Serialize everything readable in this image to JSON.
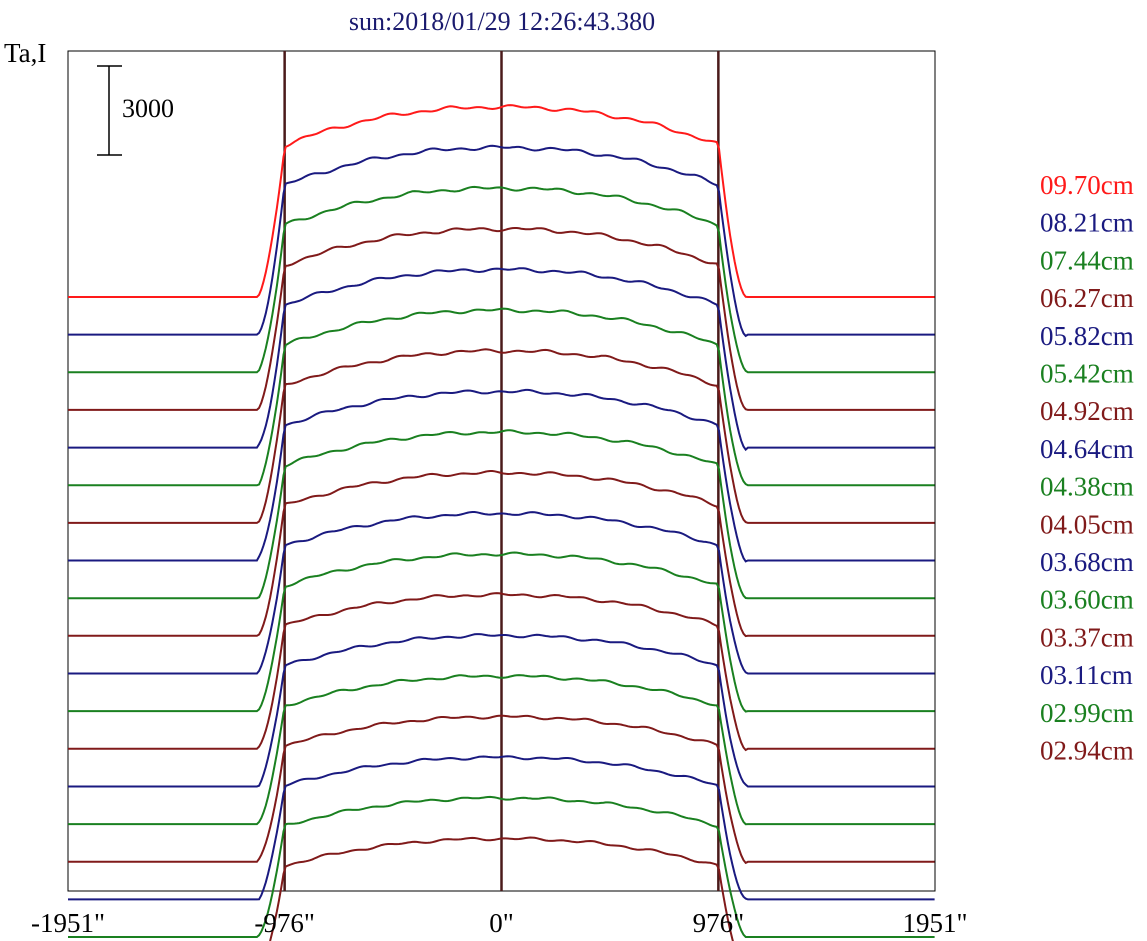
{
  "chart_data": {
    "type": "line",
    "title": "sun:2018/01/29 12:26:43.380",
    "ylabel": "Ta,I",
    "scale_bar_label": "3000",
    "scale_bar_value": 3000,
    "x_range": [
      -1951,
      1951
    ],
    "x_ticks": [
      {
        "value": -1951,
        "label": "-1951\""
      },
      {
        "value": -976,
        "label": "-976\""
      },
      {
        "value": 0,
        "label": "0\""
      },
      {
        "value": 976,
        "label": "976\""
      },
      {
        "value": 1951,
        "label": "1951\""
      }
    ],
    "reference_lines": [
      -976,
      0,
      976
    ],
    "reference_line_color": "#4a1a1a",
    "grid": false,
    "legend_position": "right",
    "stacked_offsets": true,
    "series": [
      {
        "name": "09.70cm",
        "color": "#ff1a1a"
      },
      {
        "name": "08.21cm",
        "color": "#1a1a80"
      },
      {
        "name": "07.44cm",
        "color": "#1a8020"
      },
      {
        "name": "06.27cm",
        "color": "#801a1a"
      },
      {
        "name": "05.82cm",
        "color": "#1a1a80"
      },
      {
        "name": "05.42cm",
        "color": "#1a8020"
      },
      {
        "name": "04.92cm",
        "color": "#801a1a"
      },
      {
        "name": "04.64cm",
        "color": "#1a1a80"
      },
      {
        "name": "04.38cm",
        "color": "#1a8020"
      },
      {
        "name": "04.05cm",
        "color": "#801a1a"
      },
      {
        "name": "03.68cm",
        "color": "#1a1a80"
      },
      {
        "name": "03.60cm",
        "color": "#1a8020"
      },
      {
        "name": "03.37cm",
        "color": "#801a1a"
      },
      {
        "name": "03.11cm",
        "color": "#1a1a80"
      },
      {
        "name": "02.99cm",
        "color": "#1a8020"
      },
      {
        "name": "02.94cm",
        "color": "#801a1a"
      },
      {
        "name": "",
        "color": "#1a1a80"
      },
      {
        "name": "",
        "color": "#1a8020"
      },
      {
        "name": "",
        "color": "#801a1a"
      }
    ]
  }
}
